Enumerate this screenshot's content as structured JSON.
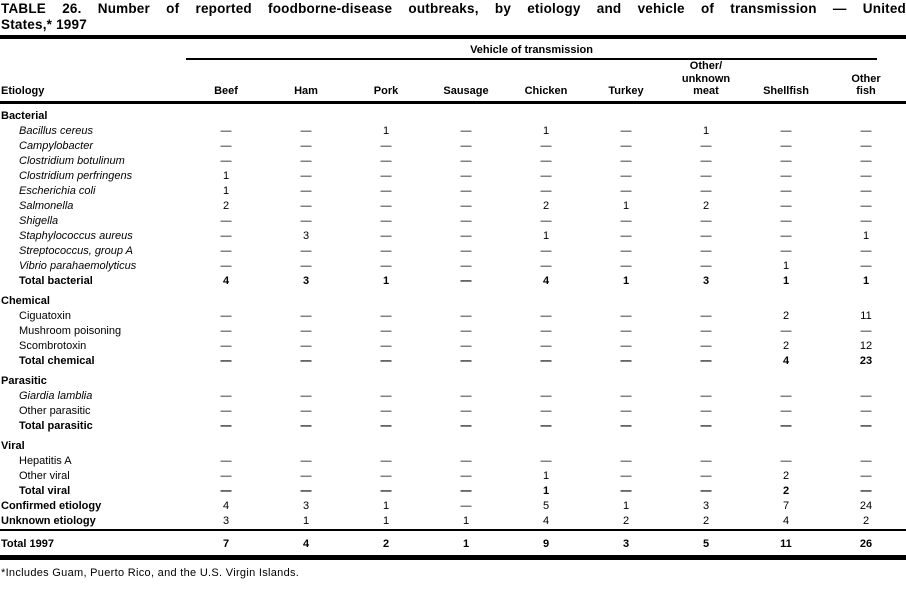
{
  "title_lines": [
    "TABLE 26. Number of reported foodborne-disease outbreaks, by etiology and vehicle of transmission — United",
    "States,* 1997"
  ],
  "table": {
    "spanner": "Vehicle of transmission",
    "etiology_header": "Etiology",
    "columns": [
      {
        "lines": [
          "Beef"
        ]
      },
      {
        "lines": [
          "Ham"
        ]
      },
      {
        "lines": [
          "Pork"
        ]
      },
      {
        "lines": [
          "Sausage"
        ]
      },
      {
        "lines": [
          "Chicken"
        ]
      },
      {
        "lines": [
          "Turkey"
        ]
      },
      {
        "lines": [
          "Other/",
          "unknown",
          "meat"
        ]
      },
      {
        "lines": [
          "Shellfish"
        ]
      },
      {
        "lines": [
          "Other",
          "fish"
        ]
      }
    ],
    "rows": [
      {
        "type": "section",
        "label": "Bacterial"
      },
      {
        "type": "item",
        "italic": true,
        "label": "Bacillus cereus",
        "values": [
          "—",
          "—",
          "1",
          "—",
          "1",
          "—",
          "1",
          "—",
          "—"
        ]
      },
      {
        "type": "item",
        "italic": true,
        "label": "Campylobacter",
        "values": [
          "—",
          "—",
          "—",
          "—",
          "—",
          "—",
          "—",
          "—",
          "—"
        ]
      },
      {
        "type": "item",
        "italic": true,
        "label": "Clostridium botulinum",
        "values": [
          "—",
          "—",
          "—",
          "—",
          "—",
          "—",
          "—",
          "—",
          "—"
        ]
      },
      {
        "type": "item",
        "italic": true,
        "label": "Clostridium perfringens",
        "values": [
          "1",
          "—",
          "—",
          "—",
          "—",
          "—",
          "—",
          "—",
          "—"
        ]
      },
      {
        "type": "item",
        "italic": true,
        "label": "Escherichia coli",
        "values": [
          "1",
          "—",
          "—",
          "—",
          "—",
          "—",
          "—",
          "—",
          "—"
        ]
      },
      {
        "type": "item",
        "italic": true,
        "label": "Salmonella",
        "values": [
          "2",
          "—",
          "—",
          "—",
          "2",
          "1",
          "2",
          "—",
          "—"
        ]
      },
      {
        "type": "item",
        "italic": true,
        "label": "Shigella",
        "values": [
          "—",
          "—",
          "—",
          "—",
          "—",
          "—",
          "—",
          "—",
          "—"
        ]
      },
      {
        "type": "item",
        "italic": true,
        "label": "Staphylococcus aureus",
        "values": [
          "—",
          "3",
          "—",
          "—",
          "1",
          "—",
          "—",
          "—",
          "1"
        ]
      },
      {
        "type": "item",
        "italic": true,
        "label": "Streptococcus, group A",
        "values": [
          "—",
          "—",
          "—",
          "—",
          "—",
          "—",
          "—",
          "—",
          "—"
        ]
      },
      {
        "type": "item",
        "italic": true,
        "label": "Vibrio parahaemolyticus",
        "values": [
          "—",
          "—",
          "—",
          "—",
          "—",
          "—",
          "—",
          "1",
          "—"
        ]
      },
      {
        "type": "total",
        "label": "Total bacterial",
        "values": [
          "4",
          "3",
          "1",
          "—",
          "4",
          "1",
          "3",
          "1",
          "1"
        ]
      },
      {
        "type": "section",
        "label": "Chemical"
      },
      {
        "type": "item",
        "label": "Ciguatoxin",
        "values": [
          "—",
          "—",
          "—",
          "—",
          "—",
          "—",
          "—",
          "2",
          "11"
        ]
      },
      {
        "type": "item",
        "label": "Mushroom poisoning",
        "values": [
          "—",
          "—",
          "—",
          "—",
          "—",
          "—",
          "—",
          "—",
          "—"
        ]
      },
      {
        "type": "item",
        "label": "Scombrotoxin",
        "values": [
          "—",
          "—",
          "—",
          "—",
          "—",
          "—",
          "—",
          "2",
          "12"
        ]
      },
      {
        "type": "total",
        "label": "Total chemical",
        "values": [
          "—",
          "—",
          "—",
          "—",
          "—",
          "—",
          "—",
          "4",
          "23"
        ]
      },
      {
        "type": "section",
        "label": "Parasitic"
      },
      {
        "type": "item",
        "italic": true,
        "label": "Giardia lamblia",
        "values": [
          "—",
          "—",
          "—",
          "—",
          "—",
          "—",
          "—",
          "—",
          "—"
        ]
      },
      {
        "type": "item",
        "label": "Other parasitic",
        "values": [
          "—",
          "—",
          "—",
          "—",
          "—",
          "—",
          "—",
          "—",
          "—"
        ]
      },
      {
        "type": "total",
        "label": "Total parasitic",
        "values": [
          "—",
          "—",
          "—",
          "—",
          "—",
          "—",
          "—",
          "—",
          "—"
        ]
      },
      {
        "type": "section",
        "label": "Viral"
      },
      {
        "type": "item",
        "label": "Hepatitis A",
        "values": [
          "—",
          "—",
          "—",
          "—",
          "—",
          "—",
          "—",
          "—",
          "—"
        ]
      },
      {
        "type": "item",
        "label": "Other viral",
        "values": [
          "—",
          "—",
          "—",
          "—",
          "1",
          "—",
          "—",
          "2",
          "—"
        ]
      },
      {
        "type": "total",
        "label": "Total viral",
        "values": [
          "—",
          "—",
          "—",
          "—",
          "1",
          "—",
          "—",
          "2",
          "—"
        ]
      },
      {
        "type": "summary",
        "label": "Confirmed etiology",
        "values": [
          "4",
          "3",
          "1",
          "—",
          "5",
          "1",
          "3",
          "7",
          "24"
        ]
      },
      {
        "type": "summary",
        "label": "Unknown etiology",
        "values": [
          "3",
          "1",
          "1",
          "1",
          "4",
          "2",
          "2",
          "4",
          "2"
        ]
      },
      {
        "type": "grand",
        "label": "Total 1997",
        "values": [
          "7",
          "4",
          "2",
          "1",
          "9",
          "3",
          "5",
          "11",
          "26"
        ]
      }
    ]
  },
  "footnote": "*Includes Guam, Puerto Rico, and the U.S. Virgin Islands."
}
